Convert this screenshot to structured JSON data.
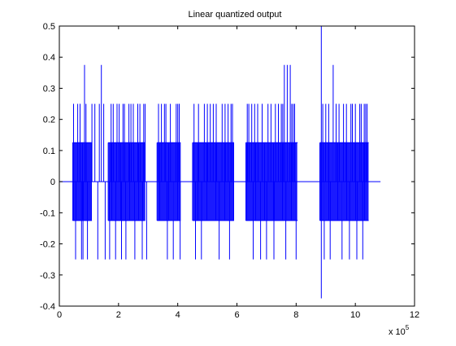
{
  "chart_data": {
    "type": "line",
    "title": "Linear quantized output",
    "xlabel": "",
    "ylabel": "",
    "x_multiplier_label": "x 10",
    "x_multiplier_exponent": "5",
    "xlim": [
      0,
      12
    ],
    "ylim": [
      -0.4,
      0.5
    ],
    "xticks": [
      0,
      2,
      4,
      6,
      8,
      10,
      12
    ],
    "yticks": [
      -0.4,
      -0.3,
      -0.2,
      -0.1,
      0,
      0.1,
      0.2,
      0.3,
      0.4,
      0.5
    ],
    "ytick_labels": [
      "-0.4",
      "-0.3",
      "-0.2",
      "-0.1",
      "0",
      "0.1",
      "0.2",
      "0.3",
      "0.4",
      "0.5"
    ],
    "grid": false,
    "line_color": "#0000ff",
    "x_range": [
      0,
      10.85
    ],
    "quantization_step": 0.125,
    "dense_segments": [
      {
        "x": [
          0.45,
          1.1
        ],
        "y": [
          -0.125,
          0.125
        ]
      },
      {
        "x": [
          1.65,
          2.9
        ],
        "y": [
          -0.125,
          0.125
        ]
      },
      {
        "x": [
          3.3,
          4.1
        ],
        "y": [
          -0.125,
          0.125
        ]
      },
      {
        "x": [
          4.5,
          5.9
        ],
        "y": [
          -0.125,
          0.125
        ]
      },
      {
        "x": [
          6.3,
          8.05
        ],
        "y": [
          -0.125,
          0.125
        ]
      },
      {
        "x": [
          8.8,
          10.45
        ],
        "y": [
          -0.125,
          0.125
        ]
      }
    ],
    "spikes": [
      {
        "x": 0.48,
        "y": 0.25
      },
      {
        "x": 0.55,
        "y": -0.25
      },
      {
        "x": 0.62,
        "y": 0.25
      },
      {
        "x": 0.7,
        "y": 0.25
      },
      {
        "x": 0.75,
        "y": -0.25
      },
      {
        "x": 0.8,
        "y": -0.25
      },
      {
        "x": 0.85,
        "y": 0.375
      },
      {
        "x": 0.9,
        "y": 0.25
      },
      {
        "x": 0.95,
        "y": -0.25
      },
      {
        "x": 1.1,
        "y": 0.25
      },
      {
        "x": 1.2,
        "y": 0.25
      },
      {
        "x": 1.3,
        "y": -0.25
      },
      {
        "x": 1.35,
        "y": 0.25
      },
      {
        "x": 1.42,
        "y": 0.375
      },
      {
        "x": 1.5,
        "y": 0.25
      },
      {
        "x": 1.55,
        "y": -0.25
      },
      {
        "x": 1.7,
        "y": -0.25
      },
      {
        "x": 1.75,
        "y": 0.25
      },
      {
        "x": 1.82,
        "y": 0.25
      },
      {
        "x": 1.9,
        "y": -0.25
      },
      {
        "x": 1.95,
        "y": 0.25
      },
      {
        "x": 2.02,
        "y": 0.25
      },
      {
        "x": 2.1,
        "y": -0.25
      },
      {
        "x": 2.15,
        "y": 0.25
      },
      {
        "x": 2.2,
        "y": 0.25
      },
      {
        "x": 2.25,
        "y": -0.25
      },
      {
        "x": 2.35,
        "y": 0.25
      },
      {
        "x": 2.42,
        "y": 0.25
      },
      {
        "x": 2.5,
        "y": 0.25
      },
      {
        "x": 2.55,
        "y": -0.25
      },
      {
        "x": 2.65,
        "y": 0.25
      },
      {
        "x": 2.72,
        "y": 0.25
      },
      {
        "x": 2.8,
        "y": -0.25
      },
      {
        "x": 2.85,
        "y": 0.25
      },
      {
        "x": 2.9,
        "y": 0.25
      },
      {
        "x": 2.95,
        "y": -0.25
      },
      {
        "x": 3.35,
        "y": 0.25
      },
      {
        "x": 3.45,
        "y": 0.25
      },
      {
        "x": 3.55,
        "y": 0.25
      },
      {
        "x": 3.6,
        "y": 0.25
      },
      {
        "x": 3.65,
        "y": -0.25
      },
      {
        "x": 3.75,
        "y": 0.25
      },
      {
        "x": 3.85,
        "y": -0.25
      },
      {
        "x": 3.95,
        "y": 0.25
      },
      {
        "x": 4.0,
        "y": 0.25
      },
      {
        "x": 4.05,
        "y": 0.25
      },
      {
        "x": 4.08,
        "y": -0.25
      },
      {
        "x": 4.55,
        "y": 0.25
      },
      {
        "x": 4.6,
        "y": -0.25
      },
      {
        "x": 4.7,
        "y": 0.25
      },
      {
        "x": 4.8,
        "y": -0.25
      },
      {
        "x": 4.9,
        "y": 0.25
      },
      {
        "x": 5.0,
        "y": 0.25
      },
      {
        "x": 5.1,
        "y": 0.25
      },
      {
        "x": 5.2,
        "y": 0.25
      },
      {
        "x": 5.3,
        "y": 0.25
      },
      {
        "x": 5.4,
        "y": -0.25
      },
      {
        "x": 5.5,
        "y": 0.25
      },
      {
        "x": 5.6,
        "y": 0.25
      },
      {
        "x": 5.7,
        "y": 0.25
      },
      {
        "x": 5.75,
        "y": -0.25
      },
      {
        "x": 5.8,
        "y": 0.25
      },
      {
        "x": 5.85,
        "y": 0.25
      },
      {
        "x": 6.35,
        "y": 0.25
      },
      {
        "x": 6.4,
        "y": 0.25
      },
      {
        "x": 6.5,
        "y": 0.25
      },
      {
        "x": 6.55,
        "y": -0.25
      },
      {
        "x": 6.6,
        "y": 0.25
      },
      {
        "x": 6.7,
        "y": 0.25
      },
      {
        "x": 6.8,
        "y": -0.25
      },
      {
        "x": 6.85,
        "y": 0.25
      },
      {
        "x": 7.0,
        "y": -0.25
      },
      {
        "x": 7.05,
        "y": 0.25
      },
      {
        "x": 7.15,
        "y": 0.25
      },
      {
        "x": 7.25,
        "y": -0.25
      },
      {
        "x": 7.3,
        "y": 0.25
      },
      {
        "x": 7.4,
        "y": 0.25
      },
      {
        "x": 7.5,
        "y": 0.25
      },
      {
        "x": 7.55,
        "y": 0.25
      },
      {
        "x": 7.6,
        "y": 0.375
      },
      {
        "x": 7.65,
        "y": -0.25
      },
      {
        "x": 7.7,
        "y": 0.375
      },
      {
        "x": 7.8,
        "y": 0.375
      },
      {
        "x": 7.85,
        "y": 0.25
      },
      {
        "x": 7.9,
        "y": 0.25
      },
      {
        "x": 7.95,
        "y": 0.25
      },
      {
        "x": 8.0,
        "y": -0.25
      },
      {
        "x": 8.85,
        "y": 0.5
      },
      {
        "x": 8.85,
        "y": -0.375
      },
      {
        "x": 8.9,
        "y": 0.25
      },
      {
        "x": 8.95,
        "y": -0.25
      },
      {
        "x": 9.0,
        "y": 0.25
      },
      {
        "x": 9.1,
        "y": 0.25
      },
      {
        "x": 9.15,
        "y": -0.25
      },
      {
        "x": 9.25,
        "y": 0.375
      },
      {
        "x": 9.35,
        "y": 0.25
      },
      {
        "x": 9.45,
        "y": 0.25
      },
      {
        "x": 9.55,
        "y": -0.25
      },
      {
        "x": 9.6,
        "y": 0.25
      },
      {
        "x": 9.7,
        "y": 0.25
      },
      {
        "x": 9.8,
        "y": -0.25
      },
      {
        "x": 9.85,
        "y": 0.25
      },
      {
        "x": 9.9,
        "y": 0.25
      },
      {
        "x": 10.0,
        "y": 0.25
      },
      {
        "x": 10.05,
        "y": -0.25
      },
      {
        "x": 10.15,
        "y": 0.25
      },
      {
        "x": 10.2,
        "y": 0.25
      },
      {
        "x": 10.25,
        "y": -0.25
      },
      {
        "x": 10.3,
        "y": 0.25
      },
      {
        "x": 10.35,
        "y": 0.25
      },
      {
        "x": 10.4,
        "y": 0.25
      }
    ]
  }
}
